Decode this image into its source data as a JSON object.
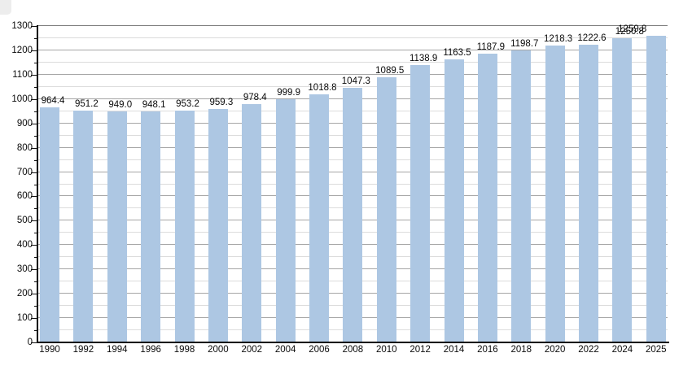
{
  "chart_data": {
    "type": "bar",
    "title": "",
    "xlabel": "",
    "ylabel": "",
    "categories": [
      "1990",
      "1992",
      "1994",
      "1996",
      "1998",
      "2000",
      "2002",
      "2004",
      "2006",
      "2008",
      "2010",
      "2012",
      "2014",
      "2016",
      "2018",
      "2020",
      "2022",
      "2024",
      "2025"
    ],
    "values": [
      964.4,
      951.2,
      949.0,
      948.1,
      953.2,
      959.3,
      978.4,
      999.9,
      1018.8,
      1047.3,
      1089.5,
      1138.9,
      1163.5,
      1187.9,
      1198.7,
      1218.3,
      1222.6,
      1250.8,
      1259.8
    ],
    "value_labels": [
      "964.4",
      "951.2",
      "949.0",
      "948.1",
      "953.2",
      "959.3",
      "978.4",
      "999.9",
      "1018.8",
      "1047.3",
      "1089.5",
      "1138.9",
      "1163.5",
      "1187.9",
      "1198.7",
      "1218.3",
      "1222.6",
      "1250.8",
      "1259.8"
    ],
    "ylim": [
      0,
      1300
    ],
    "y_major_step": 100,
    "y_minor_step": 50,
    "y_tick_labels": [
      "0",
      "100",
      "200",
      "300",
      "400",
      "500",
      "600",
      "700",
      "800",
      "900",
      "1000",
      "1100",
      "1200",
      "1300"
    ],
    "grid": true,
    "legend": null,
    "bar_color": "#adc7e3",
    "axis_color": "#000000",
    "major_grid_color": "#a6a6a6",
    "minor_grid_color": "#dcdcdc",
    "label_color": "#0a0a0a"
  }
}
